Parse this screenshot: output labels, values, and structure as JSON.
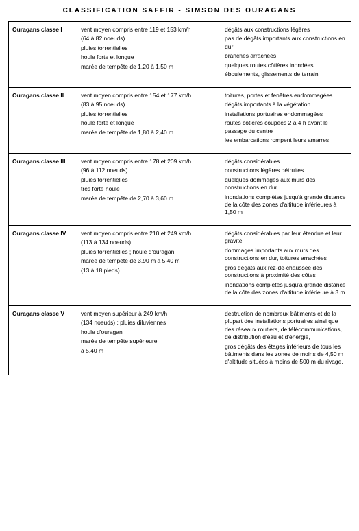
{
  "title": "CLASSIFICATION  SAFFIR - SIMSON  DES  OURAGANS",
  "rows": [
    {
      "label": "Ouragans classe I",
      "col2": [
        "vent moyen compris entre 119 et 153 km/h",
        "(64 à 82 noeuds)",
        "pluies torrentielles",
        "houle forte et longue",
        "marée de tempête de 1,20 à 1,50 m"
      ],
      "col3": [
        "dégâts aux constructions légères",
        "pas de dégâts importants aux constructions en dur",
        "branches arrachées",
        "quelques routes côtières inondées",
        "éboulements, glissements de terrain"
      ]
    },
    {
      "label": "Ouragans classe II",
      "col2": [
        "vent moyen compris entre 154 et 177 km/h",
        "(83 à 95 noeuds)",
        "pluies torrentielles",
        "houle forte et longue",
        "marée de tempête de 1,80 à 2,40 m"
      ],
      "col3": [
        "toitures, portes et fenêtres endommagées",
        "dégâts importants à la végétation",
        "installations portuaires endommagées",
        "routes côtières coupées 2 à 4 h avant le passage du centre",
        "les embarcations rompent leurs amarres"
      ]
    },
    {
      "label": "Ouragans classe III",
      "col2": [
        "vent moyen compris entre 178 et 209 km/h",
        "(96 à 112 noeuds)",
        "pluies torrentielles",
        "très forte houle",
        "marée de tempête de 2,70 à 3,60 m"
      ],
      "col3": [
        "dégâts considérables",
        "constructions légères détruites",
        "quelques dommages aux murs des constructions en dur",
        "inondations complètes jusqu'à grande distance de la côte des zones d'altitude inférieures à 1,50 m"
      ]
    },
    {
      "label": "Ouragans classe IV",
      "col2": [
        "vent moyen compris entre 210 et 249 km/h",
        "(113 à 134 noeuds)",
        "pluies torrentielles ; houle d'ouragan",
        "marée de tempête de 3,90 m à 5,40 m",
        "(13 à 18 pieds)"
      ],
      "col3": [
        "dégâts considérables par leur étendue et leur gravité",
        "dommages importants aux murs des constructions en dur, toitures arrachées",
        "gros dégâts aux rez-de-chaussée des constructions à proximité des côtes",
        "inondations complètes jusqu'à grande distance de la côte des zones d'altitude inférieure à 3 m"
      ]
    },
    {
      "label": "Ouragans classe V",
      "col2": [
        "vent moyen supérieur à 249 km/h",
        "(134 noeuds) ; pluies diluviennes",
        "houle d'ouragan",
        "marée de tempête supérieure",
        "à 5,40 m"
      ],
      "col3": [
        "destruction de nombreux bâtiments et de la plupart des installations portuaires ainsi que des réseaux routiers, de télécommunications, de distribution d'eau et d'énergie,",
        "gros dégâts des étages inférieurs de tous les bâtiments dans les zones de moins de 4,50 m d'altitude situées à moins de 500 m du rivage."
      ]
    }
  ]
}
